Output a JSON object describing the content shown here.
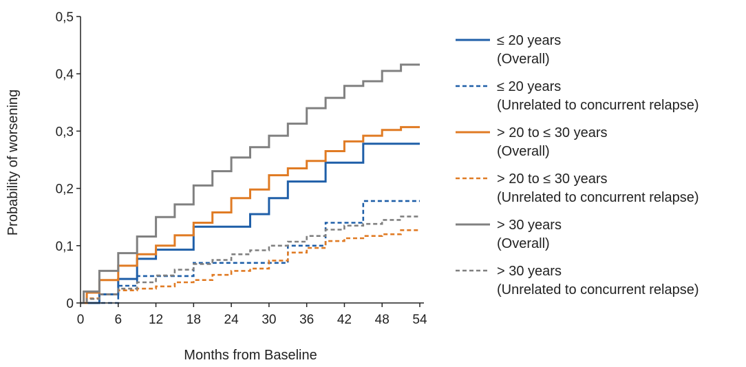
{
  "chart_data": {
    "type": "line",
    "title": "",
    "xlabel": "Months from Baseline",
    "ylabel": "Probability of worsening",
    "xlim": [
      0,
      54
    ],
    "ylim": [
      0,
      0.5
    ],
    "xticks": [
      0,
      6,
      12,
      18,
      24,
      30,
      36,
      42,
      48,
      54
    ],
    "xtick_labels": [
      "0",
      "6",
      "12",
      "18",
      "24",
      "30",
      "36",
      "42",
      "48",
      "54"
    ],
    "yticks": [
      0,
      0.1,
      0.2,
      0.3,
      0.4,
      0.5
    ],
    "ytick_labels": [
      "0",
      "0,1",
      "0,2",
      "0,3",
      "0,4",
      "0,5"
    ],
    "grid": false,
    "legend_position": "right",
    "step": true,
    "series": [
      {
        "name": "≤ 20 years (Overall)",
        "legend_line1": "≤ 20 years",
        "legend_line2": "(Overall)",
        "color": "#1f5fa8",
        "dash": "solid",
        "points": [
          [
            0,
            0
          ],
          [
            3,
            0.015
          ],
          [
            6,
            0.042
          ],
          [
            9,
            0.077
          ],
          [
            12,
            0.093
          ],
          [
            18,
            0.133
          ],
          [
            27,
            0.155
          ],
          [
            30,
            0.183
          ],
          [
            33,
            0.212
          ],
          [
            39,
            0.245
          ],
          [
            45,
            0.278
          ],
          [
            54,
            0.278
          ]
        ]
      },
      {
        "name": "≤ 20 years (Unrelated to concurrent relapse)",
        "legend_line1": "≤ 20 years",
        "legend_line2": "(Unrelated to concurrent relapse)",
        "color": "#1f5fa8",
        "dash": "dashed",
        "points": [
          [
            0,
            0
          ],
          [
            6,
            0.03
          ],
          [
            9,
            0.047
          ],
          [
            18,
            0.07
          ],
          [
            33,
            0.1
          ],
          [
            39,
            0.14
          ],
          [
            45,
            0.178
          ],
          [
            54,
            0.178
          ]
        ]
      },
      {
        "name": "> 20 to ≤ 30 years (Overall)",
        "legend_line1": "> 20 to ≤ 30 years",
        "legend_line2": "(Overall)",
        "color": "#e07b24",
        "dash": "solid",
        "points": [
          [
            0,
            0
          ],
          [
            1,
            0.018
          ],
          [
            3,
            0.04
          ],
          [
            6,
            0.065
          ],
          [
            9,
            0.085
          ],
          [
            12,
            0.1
          ],
          [
            15,
            0.118
          ],
          [
            18,
            0.14
          ],
          [
            21,
            0.158
          ],
          [
            24,
            0.183
          ],
          [
            27,
            0.198
          ],
          [
            30,
            0.223
          ],
          [
            33,
            0.235
          ],
          [
            36,
            0.248
          ],
          [
            39,
            0.265
          ],
          [
            42,
            0.282
          ],
          [
            45,
            0.292
          ],
          [
            48,
            0.302
          ],
          [
            51,
            0.307
          ],
          [
            54,
            0.307
          ]
        ]
      },
      {
        "name": "> 20 to ≤ 30 years (Unrelated to concurrent relapse)",
        "legend_line1": "> 20 to ≤ 30 years",
        "legend_line2": "(Unrelated to concurrent relapse)",
        "color": "#e07b24",
        "dash": "dashed",
        "points": [
          [
            0,
            0
          ],
          [
            1,
            0.008
          ],
          [
            3,
            0.015
          ],
          [
            6,
            0.022
          ],
          [
            9,
            0.025
          ],
          [
            12,
            0.029
          ],
          [
            15,
            0.036
          ],
          [
            18,
            0.04
          ],
          [
            21,
            0.049
          ],
          [
            24,
            0.056
          ],
          [
            27,
            0.06
          ],
          [
            30,
            0.074
          ],
          [
            33,
            0.088
          ],
          [
            36,
            0.096
          ],
          [
            39,
            0.108
          ],
          [
            42,
            0.113
          ],
          [
            45,
            0.117
          ],
          [
            48,
            0.12
          ],
          [
            51,
            0.127
          ],
          [
            54,
            0.127
          ]
        ]
      },
      {
        "name": "> 30 years (Overall)",
        "legend_line1": "> 30 years",
        "legend_line2": "(Overall)",
        "color": "#808080",
        "dash": "solid",
        "points": [
          [
            0,
            0
          ],
          [
            0.5,
            0.02
          ],
          [
            3,
            0.056
          ],
          [
            6,
            0.087
          ],
          [
            9,
            0.116
          ],
          [
            12,
            0.15
          ],
          [
            15,
            0.172
          ],
          [
            18,
            0.205
          ],
          [
            21,
            0.23
          ],
          [
            24,
            0.254
          ],
          [
            27,
            0.272
          ],
          [
            30,
            0.292
          ],
          [
            33,
            0.313
          ],
          [
            36,
            0.34
          ],
          [
            39,
            0.358
          ],
          [
            42,
            0.379
          ],
          [
            45,
            0.387
          ],
          [
            48,
            0.405
          ],
          [
            51,
            0.416
          ],
          [
            54,
            0.416
          ]
        ]
      },
      {
        "name": "> 30 years (Unrelated to concurrent relapse)",
        "legend_line1": "> 30 years",
        "legend_line2": "(Unrelated to concurrent relapse)",
        "color": "#808080",
        "dash": "dashed",
        "points": [
          [
            0,
            0
          ],
          [
            1,
            0.007
          ],
          [
            3,
            0.015
          ],
          [
            6,
            0.025
          ],
          [
            9,
            0.036
          ],
          [
            12,
            0.048
          ],
          [
            15,
            0.058
          ],
          [
            18,
            0.068
          ],
          [
            21,
            0.075
          ],
          [
            24,
            0.085
          ],
          [
            27,
            0.092
          ],
          [
            30,
            0.1
          ],
          [
            33,
            0.107
          ],
          [
            36,
            0.117
          ],
          [
            39,
            0.128
          ],
          [
            42,
            0.135
          ],
          [
            45,
            0.138
          ],
          [
            48,
            0.145
          ],
          [
            51,
            0.151
          ],
          [
            54,
            0.151
          ]
        ]
      }
    ]
  }
}
